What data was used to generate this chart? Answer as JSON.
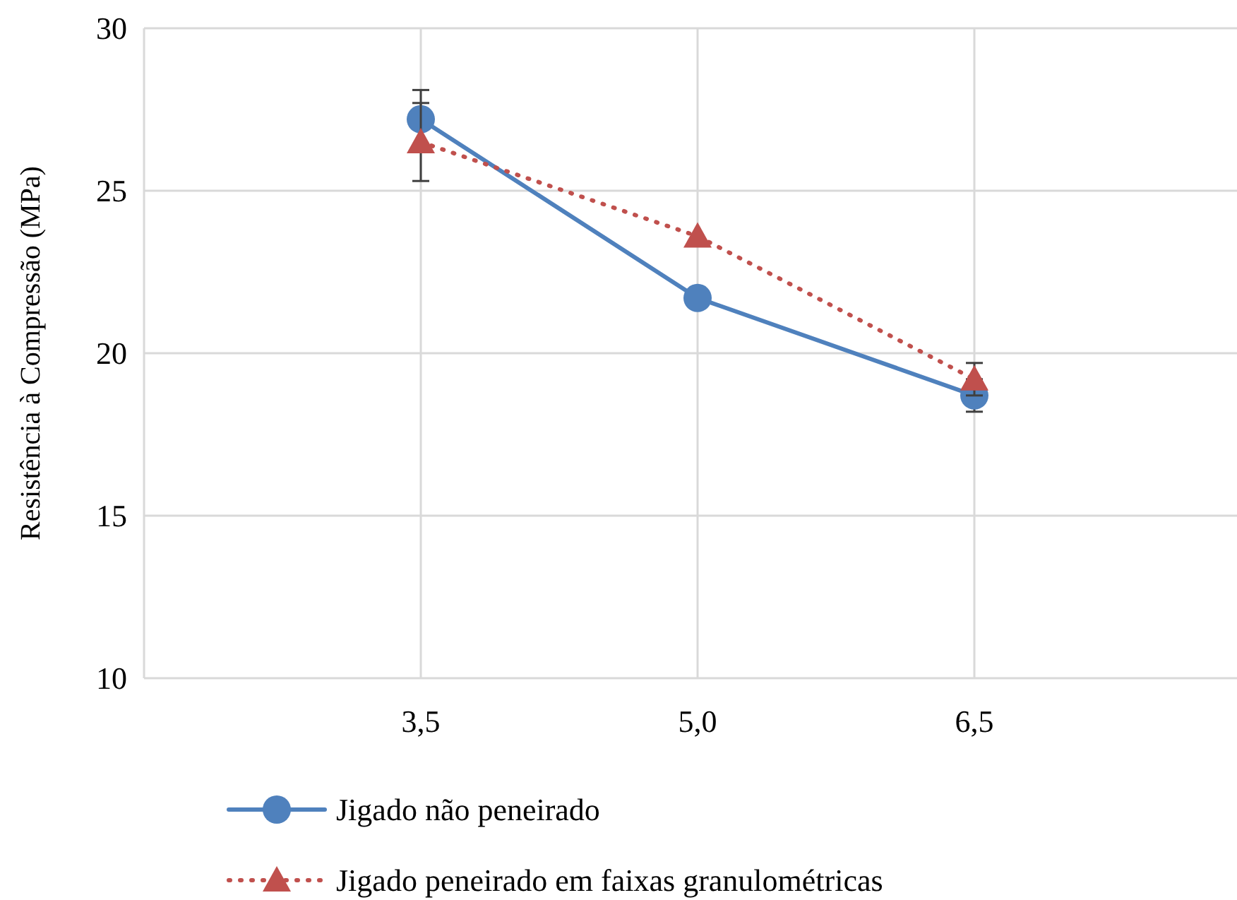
{
  "chart_data": {
    "type": "line",
    "ylabel": "Resistência à Compressão (MPa)",
    "x": [
      3.5,
      5.0,
      6.5
    ],
    "xlim": [
      2,
      8
    ],
    "xticks": [
      {
        "value": 3.5,
        "label": "3,5"
      },
      {
        "value": 5.0,
        "label": "5,0"
      },
      {
        "value": 6.5,
        "label": "6,5"
      }
    ],
    "ylim": [
      10,
      30
    ],
    "yticks": [
      10,
      15,
      20,
      25,
      30
    ],
    "grid": true,
    "legend": "bottom",
    "series": [
      {
        "name": "Jigado não peneirado",
        "color": "#4f81bd",
        "values": [
          27.2,
          21.7,
          18.7
        ],
        "errors": [
          0.9,
          null,
          0.5
        ],
        "marker": "circle",
        "line_style": "solid"
      },
      {
        "name": "Jigado peneirado em faixas granulométricas",
        "color": "#c0504d",
        "values": [
          26.5,
          23.6,
          19.2
        ],
        "errors": [
          1.2,
          null,
          0.5
        ],
        "marker": "triangle",
        "line_style": "dotted"
      }
    ]
  }
}
